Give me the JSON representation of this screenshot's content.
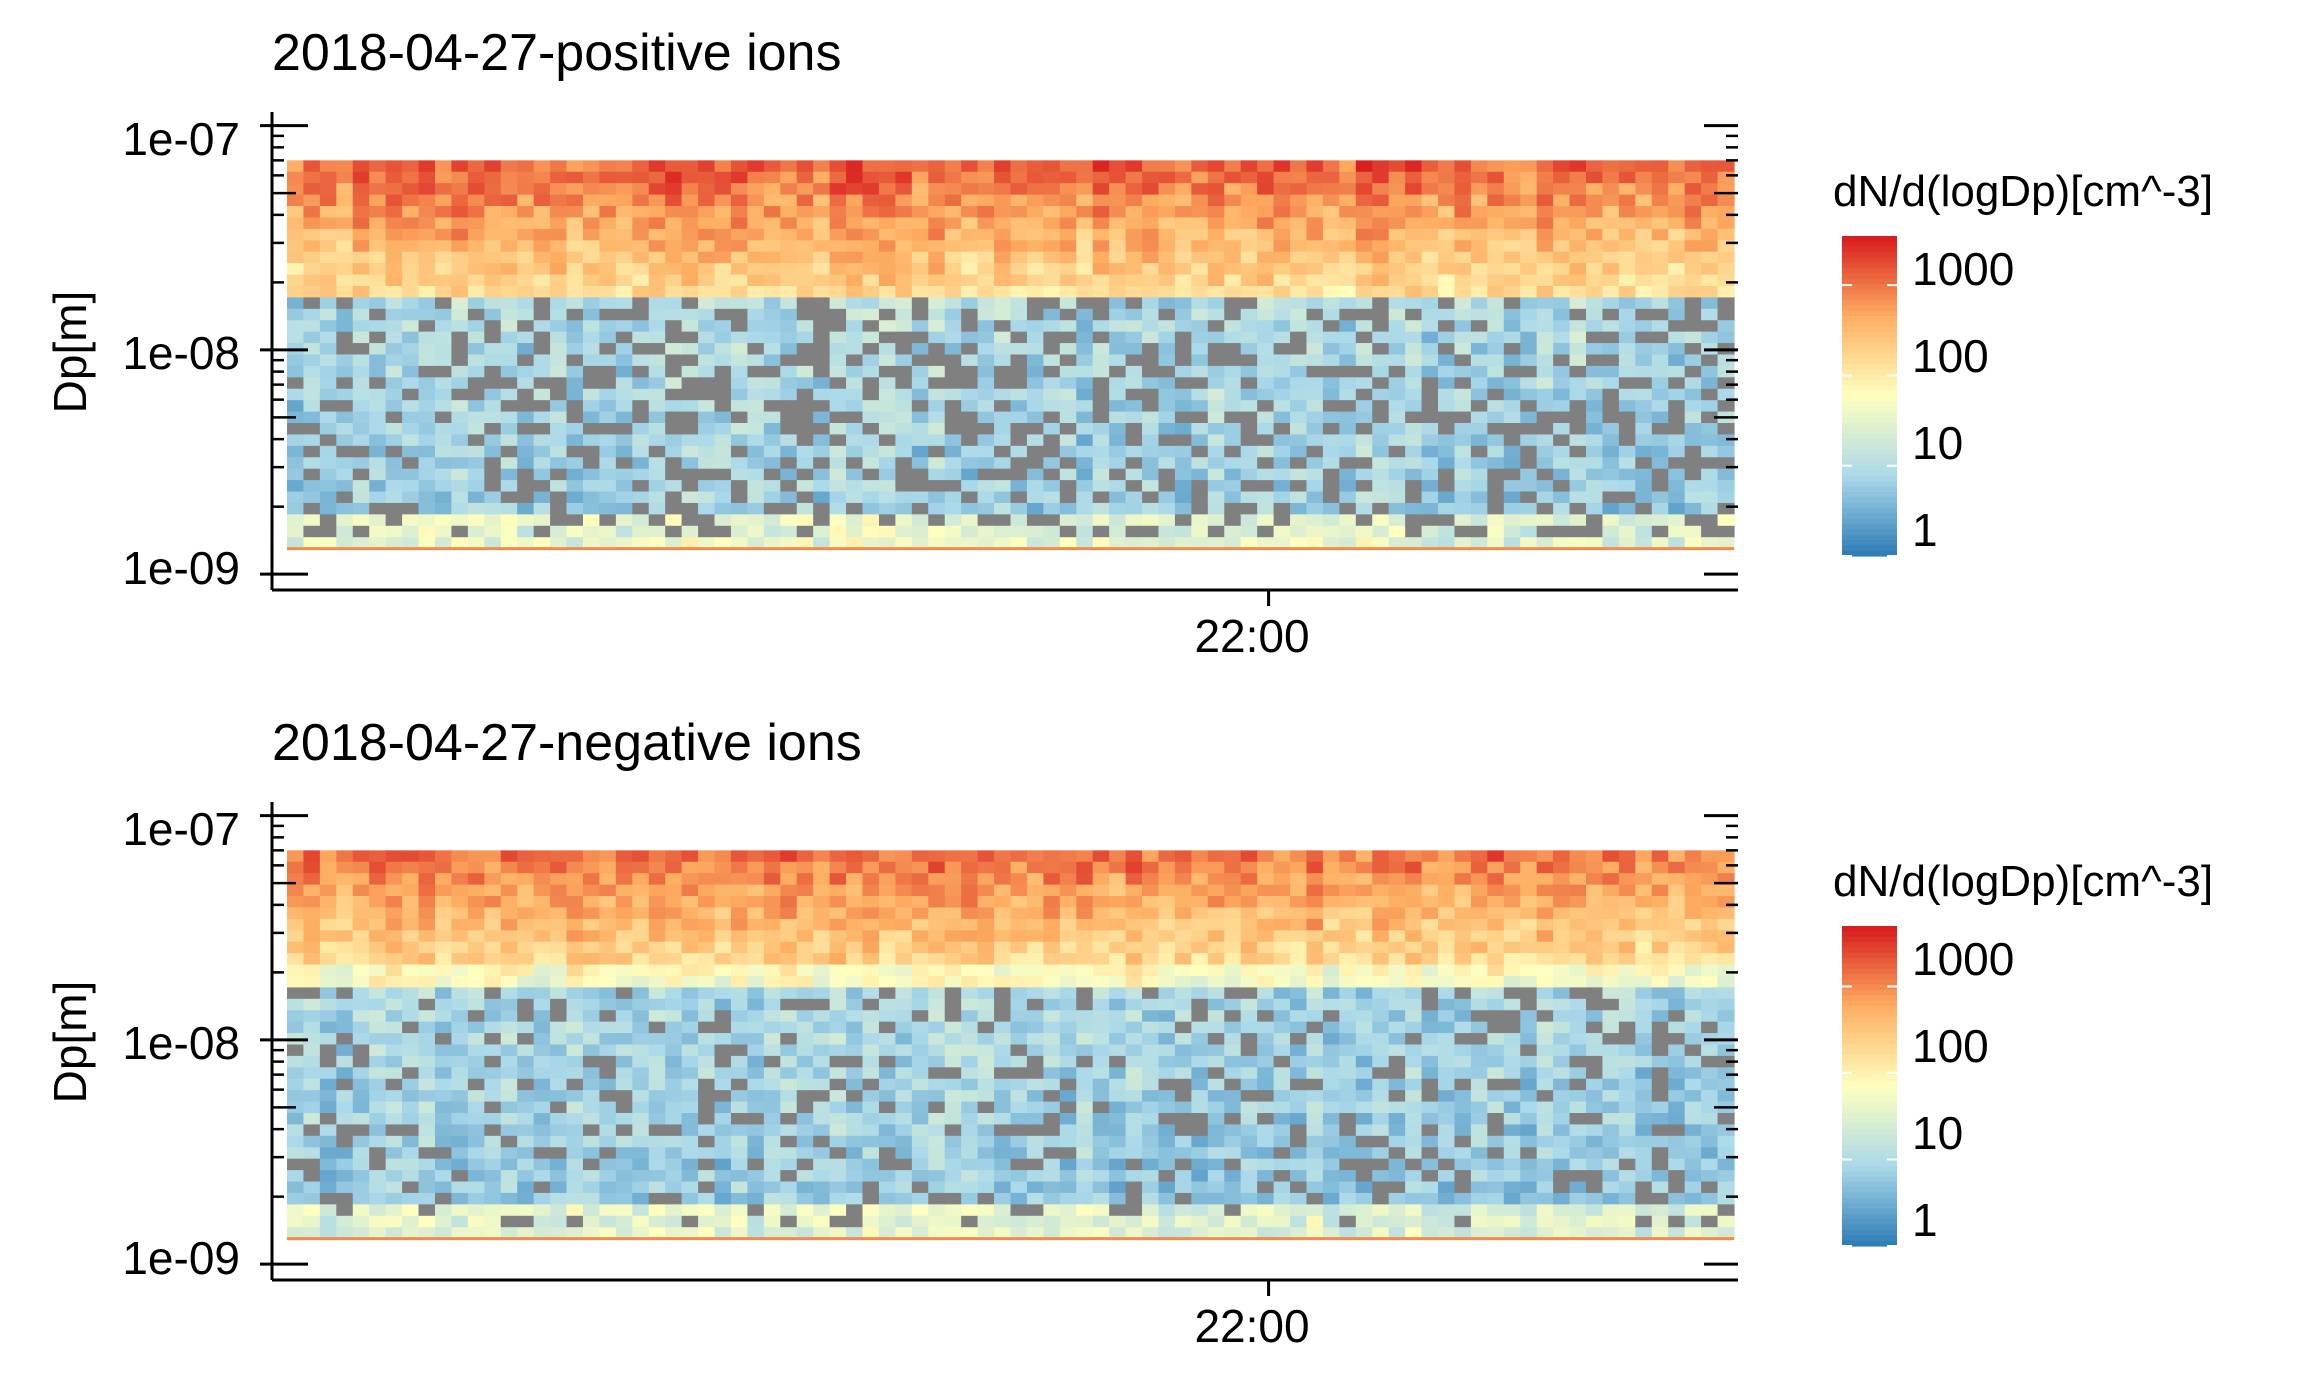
{
  "chart_data": [
    {
      "type": "heatmap",
      "title": "2018-04-27-positive ions",
      "ylabel": "Dp[m]",
      "xlabel": "",
      "y_scale": "log",
      "ylim": [
        8.5e-10,
        1.15e-07
      ],
      "y_ticks": [
        "1e-09",
        "1e-08",
        "1e-07"
      ],
      "x_ticks": [
        "22:00"
      ],
      "x_range": [
        "19:42",
        "23:05"
      ],
      "y_cell_range": [
        1.3e-09,
        7e-08
      ],
      "grid": false,
      "legend": {
        "title": "dN/d(logDp)[cm^-3]",
        "placement": "right",
        "scale": "log",
        "labels": [
          "1000",
          "100",
          "10",
          "1"
        ],
        "range": [
          1,
          3500
        ]
      },
      "missing_color": "#808080",
      "colors": [
        "#2c7bb6",
        "#abd9e9",
        "#ffffbf",
        "#fdae61",
        "#d7191c"
      ]
    },
    {
      "type": "heatmap",
      "title": "2018-04-27-negative ions",
      "ylabel": "Dp[m]",
      "xlabel": "",
      "y_scale": "log",
      "ylim": [
        8.5e-10,
        1.15e-07
      ],
      "y_ticks": [
        "1e-09",
        "1e-08",
        "1e-07"
      ],
      "x_ticks": [
        "22:00"
      ],
      "x_range": [
        "19:42",
        "23:05"
      ],
      "y_cell_range": [
        1.3e-09,
        7e-08
      ],
      "grid": false,
      "legend": {
        "title": "dN/d(logDp)[cm^-3]",
        "placement": "right",
        "scale": "log",
        "labels": [
          "1000",
          "100",
          "10",
          "1"
        ],
        "range": [
          1,
          5000
        ]
      },
      "missing_color": "#808080",
      "colors": [
        "#2c7bb6",
        "#abd9e9",
        "#ffffbf",
        "#fdae61",
        "#d7191c"
      ]
    }
  ]
}
